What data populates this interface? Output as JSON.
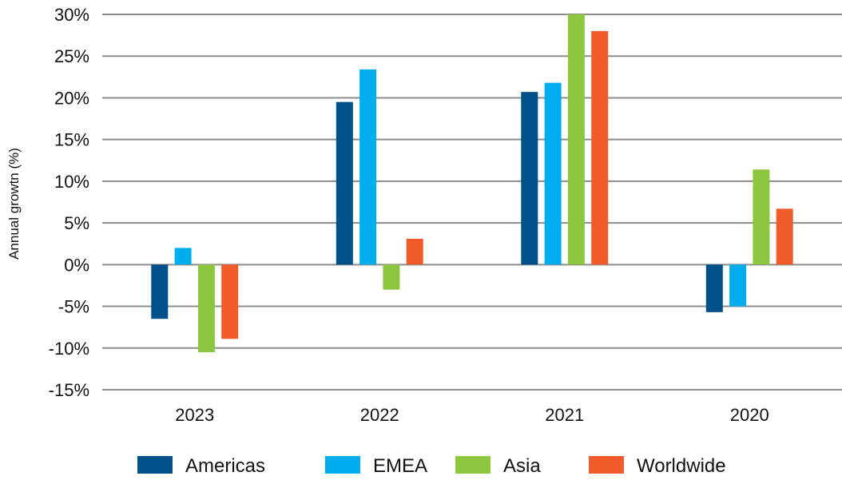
{
  "chart_data": {
    "type": "bar",
    "title": "",
    "xlabel": "",
    "ylabel": "Annual growtn (%)",
    "categories": [
      "2023",
      "2022",
      "2021",
      "2020"
    ],
    "ylim": [
      -15,
      30
    ],
    "yticks": [
      30,
      25,
      20,
      15,
      10,
      5,
      0,
      -5,
      -10,
      -15
    ],
    "ytick_labels": [
      "30%",
      "25%",
      "20%",
      "15%",
      "10%",
      "5%",
      "0%",
      "-5%",
      "-10%",
      "-15%"
    ],
    "grid": true,
    "legend_position": "bottom",
    "series": [
      {
        "name": "Americas",
        "color": "#00508a",
        "values": [
          -6.5,
          19.5,
          20.7,
          -5.7
        ]
      },
      {
        "name": "EMEA",
        "color": "#00aeef",
        "values": [
          2.0,
          23.4,
          21.8,
          -5.0
        ]
      },
      {
        "name": "Asia",
        "color": "#8dc63f",
        "values": [
          -10.5,
          -3.0,
          30.0,
          11.4
        ]
      },
      {
        "name": "Worldwide",
        "color": "#f15a29",
        "values": [
          -8.9,
          3.1,
          28.0,
          6.7
        ]
      }
    ]
  }
}
